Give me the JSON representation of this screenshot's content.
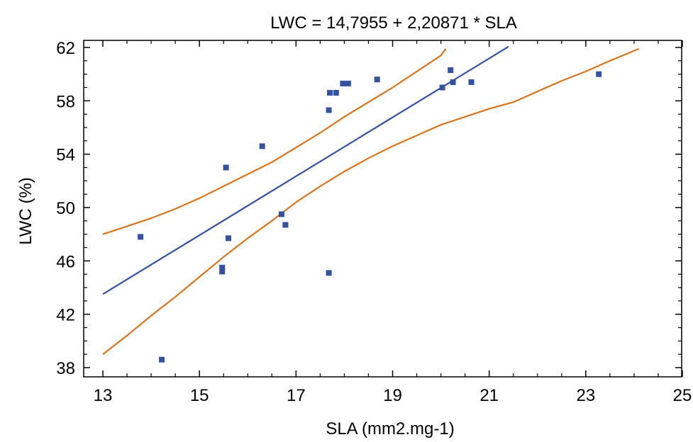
{
  "chart_data": {
    "type": "scatter",
    "title": "LWC = 14,7955 + 2,20871 * SLA",
    "xlabel": "SLA (mm2.mg-1)",
    "ylabel": "LWC (%)",
    "xlim": [
      13,
      25
    ],
    "ylim": [
      37.5,
      62.5
    ],
    "xticks": [
      13,
      15,
      17,
      19,
      21,
      23,
      25
    ],
    "xtick_labels": [
      "13",
      "15",
      "17",
      "19",
      "21",
      "23",
      "25"
    ],
    "yticks": [
      38,
      42,
      46,
      50,
      54,
      58,
      62
    ],
    "ytick_labels": [
      "38",
      "42",
      "46",
      "50",
      "54",
      "58",
      "62"
    ],
    "grid": false,
    "colors": {
      "points": "#3552a0",
      "fit_line": "#3552a0",
      "interval_lines": "#d9741f",
      "axes": "#000000"
    },
    "regression": {
      "intercept": 14.7955,
      "slope": 2.20871,
      "x_range": [
        13.0,
        21.4
      ]
    },
    "upper_band": [
      [
        13.0,
        48.0
      ],
      [
        13.5,
        48.6
      ],
      [
        14.0,
        49.2
      ],
      [
        14.5,
        49.9
      ],
      [
        15.0,
        50.7
      ],
      [
        15.5,
        51.6
      ],
      [
        16.0,
        52.5
      ],
      [
        16.5,
        53.4
      ],
      [
        17.0,
        54.5
      ],
      [
        17.5,
        55.6
      ],
      [
        18.0,
        56.8
      ],
      [
        18.5,
        57.9
      ],
      [
        19.0,
        59.0
      ],
      [
        19.5,
        60.2
      ],
      [
        20.0,
        61.4
      ],
      [
        20.1,
        61.9
      ]
    ],
    "lower_band": [
      [
        13.0,
        39.0
      ],
      [
        13.5,
        40.4
      ],
      [
        14.0,
        41.9
      ],
      [
        14.5,
        43.3
      ],
      [
        15.0,
        44.8
      ],
      [
        15.5,
        46.3
      ],
      [
        16.0,
        47.7
      ],
      [
        16.5,
        49.0
      ],
      [
        17.0,
        50.4
      ],
      [
        17.5,
        51.6
      ],
      [
        18.0,
        52.7
      ],
      [
        18.5,
        53.7
      ],
      [
        19.0,
        54.6
      ],
      [
        19.5,
        55.4
      ],
      [
        20.0,
        56.2
      ],
      [
        20.5,
        56.8
      ],
      [
        21.0,
        57.4
      ],
      [
        21.5,
        57.9
      ],
      [
        22.0,
        58.7
      ],
      [
        22.5,
        59.5
      ],
      [
        23.0,
        60.2
      ],
      [
        23.5,
        61.0
      ],
      [
        24.1,
        61.9
      ]
    ],
    "points": [
      {
        "x": 13.78,
        "y": 47.8
      },
      {
        "x": 14.22,
        "y": 38.6
      },
      {
        "x": 15.47,
        "y": 45.5
      },
      {
        "x": 15.47,
        "y": 45.2
      },
      {
        "x": 15.55,
        "y": 53.0
      },
      {
        "x": 15.6,
        "y": 47.7
      },
      {
        "x": 16.3,
        "y": 54.6
      },
      {
        "x": 16.7,
        "y": 49.5
      },
      {
        "x": 16.78,
        "y": 48.7
      },
      {
        "x": 17.68,
        "y": 45.1
      },
      {
        "x": 17.68,
        "y": 57.3
      },
      {
        "x": 17.7,
        "y": 58.6
      },
      {
        "x": 17.83,
        "y": 58.6
      },
      {
        "x": 17.97,
        "y": 59.3
      },
      {
        "x": 18.08,
        "y": 59.3
      },
      {
        "x": 18.68,
        "y": 59.6
      },
      {
        "x": 20.03,
        "y": 59.0
      },
      {
        "x": 20.2,
        "y": 60.3
      },
      {
        "x": 20.25,
        "y": 59.4
      },
      {
        "x": 20.63,
        "y": 59.4
      },
      {
        "x": 23.27,
        "y": 60.0
      }
    ]
  }
}
